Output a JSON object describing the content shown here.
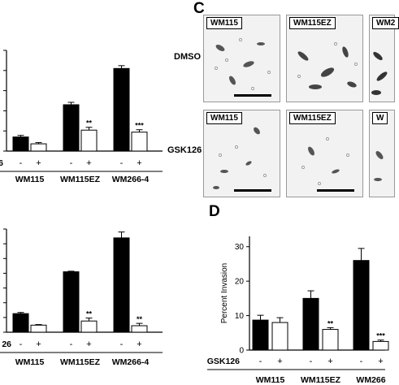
{
  "panels": {
    "c_letter": "C",
    "d_letter": "D"
  },
  "micrographs": {
    "row_labels": [
      "DMSO",
      "GSK126"
    ],
    "labels": [
      "WM115",
      "WM115EZ",
      "WM2",
      "WM115",
      "WM115EZ",
      "W"
    ]
  },
  "chart_data": [
    {
      "type": "bar",
      "panel": "top-left (partially cropped)",
      "categories": [
        "WM115",
        "WM115EZ",
        "WM266-4"
      ],
      "treatment_label": "6",
      "treatment_signs": [
        "-",
        "+"
      ],
      "series": [
        {
          "values": [
            0.35,
            1.15,
            2.05
          ],
          "errors": [
            0.04,
            0.06,
            0.07
          ],
          "color": "#000000"
        },
        {
          "values": [
            0.18,
            0.52,
            0.47
          ],
          "errors": [
            0.03,
            0.07,
            0.06
          ],
          "color": "#ffffff"
        }
      ],
      "significance": [
        "",
        "**",
        "***"
      ],
      "ylim": [
        0,
        2.5
      ]
    },
    {
      "type": "bar",
      "panel": "bottom-left (partially cropped)",
      "categories": [
        "WM115",
        "WM115EZ",
        "WM266-4"
      ],
      "treatment_label": "26",
      "treatment_signs": [
        "-",
        "+"
      ],
      "series": [
        {
          "values": [
            0.63,
            2.05,
            3.2
          ],
          "errors": [
            0.04,
            0.02,
            0.2
          ],
          "color": "#000000"
        },
        {
          "values": [
            0.24,
            0.38,
            0.22
          ],
          "errors": [
            0.02,
            0.1,
            0.08
          ],
          "color": "#ffffff"
        }
      ],
      "significance": [
        "",
        "**",
        "**"
      ],
      "ylim": [
        0,
        3.5
      ]
    },
    {
      "type": "bar",
      "panel": "D",
      "categories": [
        "WM115",
        "WM115EZ",
        "WM266"
      ],
      "treatment_label": "GSK126",
      "treatment_signs": [
        "-",
        "+"
      ],
      "ylabel": "Percent Invasion",
      "yticks": [
        0,
        10,
        20,
        30
      ],
      "ylim": [
        0,
        33
      ],
      "series": [
        {
          "values": [
            8.7,
            15.0,
            26.0
          ],
          "errors": [
            1.4,
            2.2,
            3.5
          ],
          "color": "#000000"
        },
        {
          "values": [
            8.0,
            6.0,
            2.5
          ],
          "errors": [
            1.4,
            0.5,
            0.4
          ],
          "color": "#ffffff"
        }
      ],
      "significance": [
        "",
        "**",
        "***"
      ]
    }
  ]
}
